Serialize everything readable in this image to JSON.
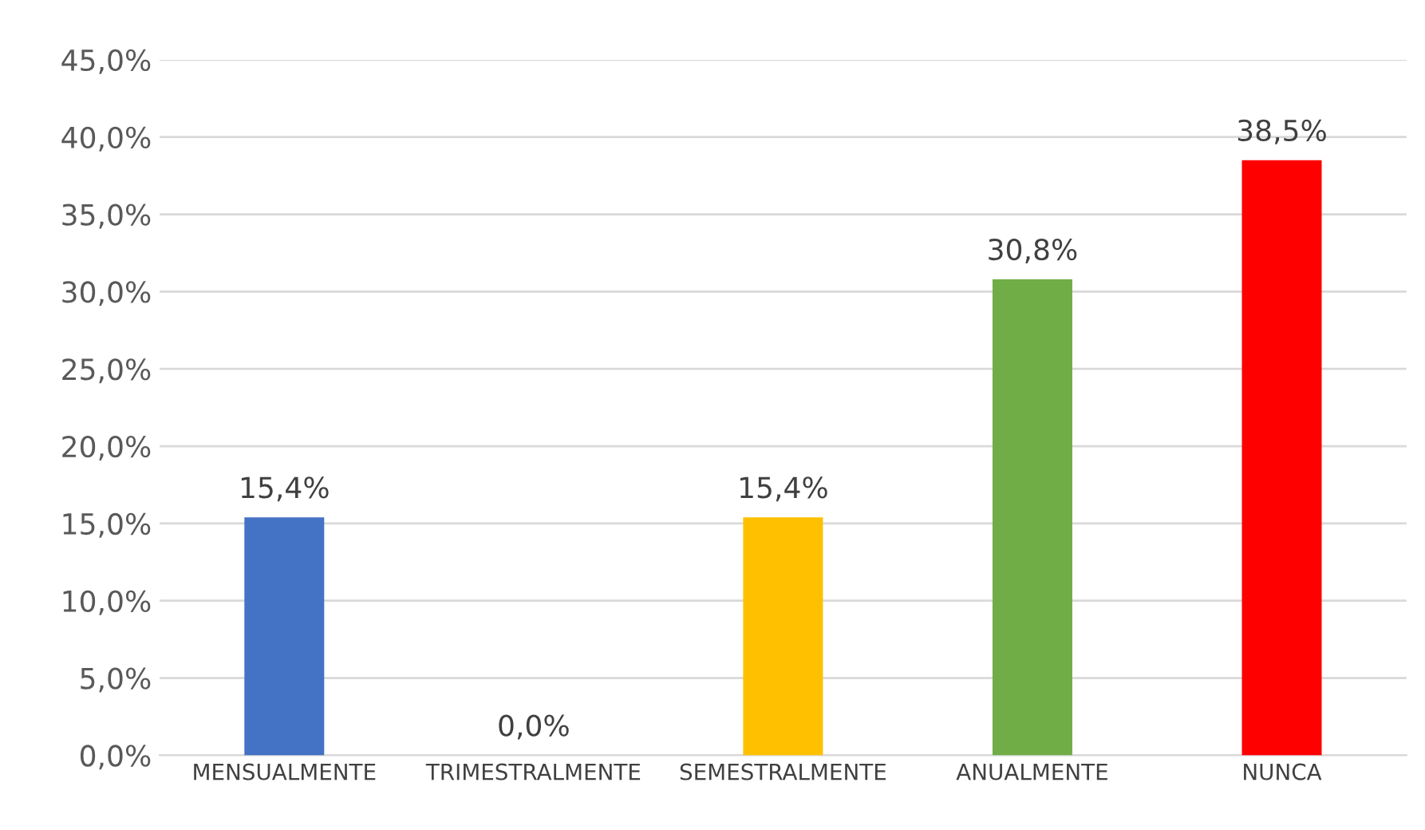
{
  "chart_data": {
    "type": "bar",
    "categories": [
      "MENSUALMENTE",
      "TRIMESTRALMENTE",
      "SEMESTRALMENTE",
      "ANUALMENTE",
      "NUNCA"
    ],
    "values": [
      15.4,
      0.0,
      15.4,
      30.8,
      38.5
    ],
    "colors": [
      "#4472c4",
      "#ed7d31",
      "#ffc000",
      "#70ad47",
      "#ff0000"
    ],
    "value_labels": [
      "15,4%",
      "0,0%",
      "15,4%",
      "30,8%",
      "38,5%"
    ],
    "ylim": [
      0,
      45
    ],
    "yticks": [
      {
        "value": 0,
        "label": "0,0%"
      },
      {
        "value": 5,
        "label": "5,0%"
      },
      {
        "value": 10,
        "label": "10,0%"
      },
      {
        "value": 15,
        "label": "15,0%"
      },
      {
        "value": 20,
        "label": "20,0%"
      },
      {
        "value": 25,
        "label": "25,0%"
      },
      {
        "value": 30,
        "label": "30,0%"
      },
      {
        "value": 35,
        "label": "35,0%"
      },
      {
        "value": 40,
        "label": "40,0%"
      },
      {
        "value": 45,
        "label": "45,0%"
      }
    ],
    "grid": "y",
    "legend": false
  }
}
